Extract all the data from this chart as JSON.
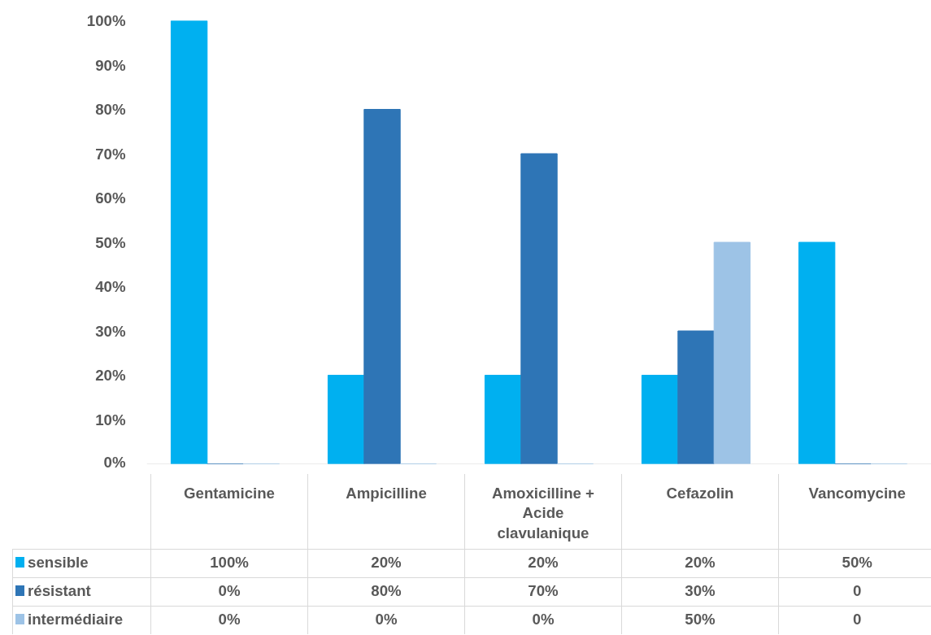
{
  "chart_data": {
    "type": "bar",
    "categories": [
      "Gentamicine",
      "Ampicilline",
      "Amoxicilline + Acide clavulanique",
      "Cefazolin",
      "Vancomycine"
    ],
    "series": [
      {
        "name": "sensible",
        "color": "#00b0f0",
        "values": [
          100,
          20,
          20,
          20,
          50
        ],
        "value_labels": [
          "100%",
          "20%",
          "20%",
          "20%",
          "50%"
        ]
      },
      {
        "name": "résistant",
        "color": "#2e75b6",
        "values": [
          0,
          80,
          70,
          30,
          0
        ],
        "value_labels": [
          "0%",
          "80%",
          "70%",
          "30%",
          "0"
        ]
      },
      {
        "name": "intermédiaire",
        "color": "#9dc3e6",
        "values": [
          0,
          0,
          0,
          50,
          0
        ],
        "value_labels": [
          "0%",
          "0%",
          "0%",
          "50%",
          "0"
        ]
      }
    ],
    "ylim": [
      0,
      100
    ],
    "yticks": [
      {
        "value": 0,
        "label": "0%"
      },
      {
        "value": 10,
        "label": "10%"
      },
      {
        "value": 20,
        "label": "20%"
      },
      {
        "value": 30,
        "label": "30%"
      },
      {
        "value": 40,
        "label": "40%"
      },
      {
        "value": 50,
        "label": "50%"
      },
      {
        "value": 60,
        "label": "60%"
      },
      {
        "value": 70,
        "label": "70%"
      },
      {
        "value": 80,
        "label": "80%"
      },
      {
        "value": 90,
        "label": "90%"
      },
      {
        "value": 100,
        "label": "100%"
      }
    ],
    "grid": false,
    "legend": "bottom"
  }
}
